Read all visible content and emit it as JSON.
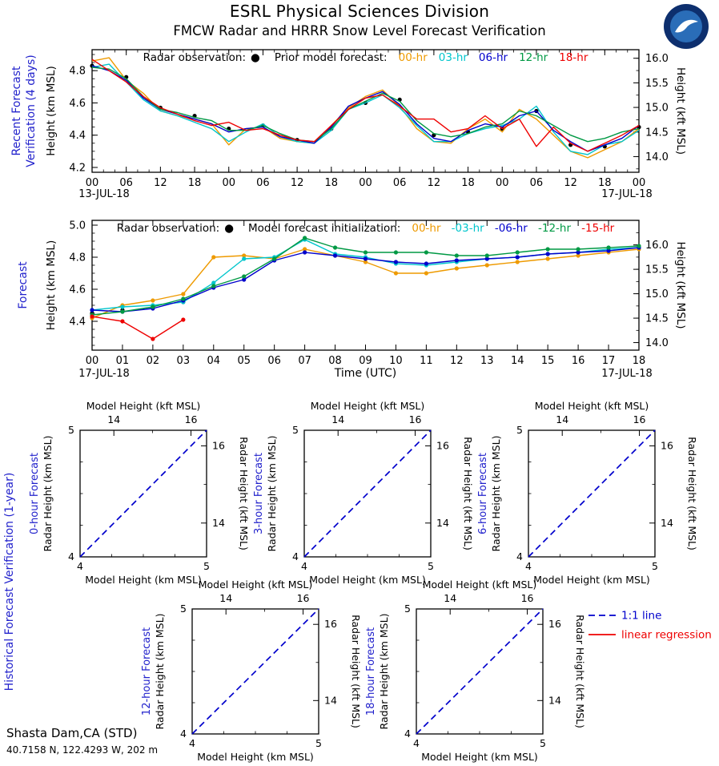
{
  "page": {
    "title": "ESRL Physical Sciences Division",
    "subtitle": "FMCW Radar and HRRR Snow Level Forecast Verification"
  },
  "logo": {
    "name": "noaa-logo",
    "colors": {
      "outer": "#0d2f6e",
      "inner": "#2a6db8",
      "bird": "#ffffff"
    }
  },
  "station": {
    "name": "Shasta Dam,CA (STD)",
    "coordinates": "40.7158 N, 122.4293 W, 202 m"
  },
  "colors": {
    "axis": "#000000",
    "side_label_blue": "#2222cc",
    "series": {
      "radar": "#000000",
      "hr00": "#ee9a00",
      "hr03": "#00c5cc",
      "hr06": "#0000cc",
      "hr12": "#009944",
      "hr18": "#ee0000"
    }
  },
  "chart_data": [
    {
      "id": "recent-verification",
      "type": "line",
      "side_label_lines": [
        "Recent Forecast",
        "Verification (4 days)"
      ],
      "ylabel_left": "Height (km MSL)",
      "ylabel_right": "Height (kft MSL)",
      "legend": {
        "radar_label": "Radar observation:",
        "group_label": "Prior model forecast:",
        "items": [
          {
            "label": "00-hr",
            "color_key": "hr00"
          },
          {
            "label": "03-hr",
            "color_key": "hr03"
          },
          {
            "label": "06-hr",
            "color_key": "hr06"
          },
          {
            "label": "12-hr",
            "color_key": "hr12"
          },
          {
            "label": "18-hr",
            "color_key": "hr18"
          }
        ]
      },
      "xlim": [
        0,
        96
      ],
      "x_tick_step": 6,
      "x_minor_step": 2,
      "x_tick_labels": [
        "00",
        "06",
        "12",
        "18",
        "00",
        "06",
        "12",
        "18",
        "00",
        "06",
        "12",
        "18",
        "00",
        "06",
        "12",
        "18",
        "00"
      ],
      "date_left": "13-JUL-18",
      "date_right": "17-JUL-18",
      "ylim": [
        4.17,
        4.93
      ],
      "yticks_left": [
        4.2,
        4.4,
        4.6,
        4.8
      ],
      "yticks_right_kft": [
        14.0,
        14.5,
        15.0,
        15.5,
        16.0
      ],
      "series": [
        {
          "name": "radar",
          "color_key": "radar",
          "line": false,
          "markers": true,
          "x": [
            0,
            6,
            12,
            18,
            24,
            30,
            36,
            42,
            48,
            54,
            60,
            66,
            72,
            78,
            84,
            90,
            96
          ],
          "y": [
            4.83,
            4.76,
            4.57,
            4.52,
            4.44,
            4.46,
            4.37,
            4.44,
            4.6,
            4.62,
            4.4,
            4.42,
            4.44,
            4.55,
            4.34,
            4.33,
            4.45
          ]
        },
        {
          "name": "00-hr",
          "color_key": "hr00",
          "markers": false,
          "x": [
            0,
            3,
            6,
            9,
            12,
            15,
            18,
            21,
            24,
            27,
            30,
            33,
            36,
            39,
            42,
            45,
            48,
            51,
            54,
            57,
            60,
            63,
            66,
            69,
            72,
            75,
            78,
            81,
            84,
            87,
            90,
            93,
            96
          ],
          "y": [
            4.86,
            4.88,
            4.74,
            4.66,
            4.55,
            4.52,
            4.5,
            4.47,
            4.34,
            4.44,
            4.45,
            4.38,
            4.36,
            4.35,
            4.46,
            4.57,
            4.64,
            4.68,
            4.58,
            4.44,
            4.36,
            4.35,
            4.44,
            4.5,
            4.42,
            4.56,
            4.5,
            4.4,
            4.3,
            4.26,
            4.31,
            4.36,
            4.44
          ]
        },
        {
          "name": "03-hr",
          "color_key": "hr03",
          "markers": false,
          "x": [
            0,
            3,
            6,
            9,
            12,
            15,
            18,
            21,
            24,
            27,
            30,
            33,
            36,
            39,
            42,
            45,
            48,
            51,
            54,
            57,
            60,
            63,
            66,
            69,
            72,
            75,
            78,
            81,
            84,
            87,
            90,
            93,
            96
          ],
          "y": [
            4.82,
            4.84,
            4.73,
            4.62,
            4.55,
            4.52,
            4.48,
            4.44,
            4.36,
            4.42,
            4.47,
            4.39,
            4.36,
            4.35,
            4.43,
            4.56,
            4.6,
            4.65,
            4.57,
            4.46,
            4.36,
            4.36,
            4.41,
            4.44,
            4.46,
            4.5,
            4.58,
            4.42,
            4.3,
            4.28,
            4.34,
            4.36,
            4.43
          ]
        },
        {
          "name": "06-hr",
          "color_key": "hr06",
          "markers": false,
          "x": [
            0,
            3,
            6,
            9,
            12,
            15,
            18,
            21,
            24,
            27,
            30,
            33,
            36,
            39,
            42,
            45,
            48,
            51,
            54,
            57,
            60,
            63,
            66,
            69,
            72,
            75,
            78,
            81,
            84,
            87,
            90,
            93,
            96
          ],
          "y": [
            4.83,
            4.8,
            4.74,
            4.63,
            4.56,
            4.53,
            4.5,
            4.47,
            4.42,
            4.44,
            4.45,
            4.39,
            4.37,
            4.35,
            4.45,
            4.58,
            4.63,
            4.67,
            4.59,
            4.47,
            4.38,
            4.36,
            4.43,
            4.47,
            4.45,
            4.52,
            4.55,
            4.43,
            4.36,
            4.3,
            4.34,
            4.38,
            4.46
          ]
        },
        {
          "name": "12-hr",
          "color_key": "hr12",
          "markers": false,
          "x": [
            0,
            3,
            6,
            9,
            12,
            15,
            18,
            21,
            24,
            27,
            30,
            33,
            36,
            39,
            42,
            45,
            48,
            51,
            54,
            57,
            60,
            63,
            66,
            69,
            72,
            75,
            78,
            81,
            84,
            87,
            90,
            93,
            96
          ],
          "y": [
            4.82,
            4.81,
            4.75,
            4.64,
            4.56,
            4.54,
            4.51,
            4.49,
            4.43,
            4.43,
            4.46,
            4.41,
            4.37,
            4.36,
            4.44,
            4.56,
            4.61,
            4.66,
            4.61,
            4.49,
            4.41,
            4.39,
            4.41,
            4.45,
            4.47,
            4.55,
            4.52,
            4.46,
            4.4,
            4.36,
            4.38,
            4.42,
            4.44
          ]
        },
        {
          "name": "18-hr",
          "color_key": "hr18",
          "markers": false,
          "x": [
            0,
            3,
            6,
            9,
            12,
            15,
            18,
            21,
            24,
            27,
            30,
            33,
            36,
            39,
            42,
            45,
            48,
            51,
            54,
            57,
            60,
            63,
            66,
            69,
            72,
            75,
            78,
            81,
            84,
            87,
            90,
            93,
            96
          ],
          "y": [
            4.87,
            4.8,
            4.73,
            4.64,
            4.57,
            4.53,
            4.49,
            4.46,
            4.48,
            4.43,
            4.44,
            4.4,
            4.37,
            4.36,
            4.46,
            4.56,
            4.63,
            4.65,
            4.58,
            4.5,
            4.5,
            4.42,
            4.44,
            4.52,
            4.44,
            4.5,
            4.33,
            4.45,
            4.35,
            4.3,
            4.35,
            4.4,
            4.46
          ]
        }
      ]
    },
    {
      "id": "forecast",
      "type": "line",
      "side_label_lines": [
        "Forecast"
      ],
      "ylabel_left": "Height (km MSL)",
      "ylabel_right": "Height (kft MSL)",
      "xlabel": "Time (UTC)",
      "legend": {
        "radar_label": "Radar observation:",
        "group_label": "Model forecast initialization:",
        "items": [
          {
            "label": "00-hr",
            "color_key": "hr00"
          },
          {
            "label": "-03-hr",
            "color_key": "hr03"
          },
          {
            "label": "-06-hr",
            "color_key": "hr06"
          },
          {
            "label": "-12-hr",
            "color_key": "hr12"
          },
          {
            "label": "-15-hr",
            "color_key": "hr18"
          }
        ]
      },
      "xlim": [
        0,
        18
      ],
      "x_tick_step": 1,
      "x_minor_step": null,
      "x_tick_labels": [
        "00",
        "01",
        "02",
        "03",
        "04",
        "05",
        "06",
        "07",
        "08",
        "09",
        "10",
        "11",
        "12",
        "13",
        "14",
        "15",
        "16",
        "17",
        "18"
      ],
      "date_left": "17-JUL-18",
      "date_right": "17-JUL-18",
      "ylim": [
        4.22,
        5.03
      ],
      "yticks_left": [
        4.4,
        4.6,
        4.8,
        5.0
      ],
      "yticks_right_kft": [
        14.0,
        14.5,
        15.0,
        15.5,
        16.0
      ],
      "series": [
        {
          "name": "radar",
          "color_key": "radar",
          "line": false,
          "markers": true,
          "x": [
            0,
            1,
            2,
            3
          ],
          "y": [
            4.45,
            4.47,
            4.49,
            4.52
          ]
        },
        {
          "name": "00-hr",
          "color_key": "hr00",
          "markers": true,
          "x": [
            0,
            1,
            2,
            3,
            4,
            5,
            6,
            7,
            8,
            9,
            10,
            11,
            12,
            13,
            14,
            15,
            16,
            17,
            18
          ],
          "y": [
            4.42,
            4.5,
            4.53,
            4.57,
            4.8,
            4.81,
            4.79,
            4.85,
            4.81,
            4.77,
            4.7,
            4.7,
            4.73,
            4.75,
            4.77,
            4.79,
            4.81,
            4.83,
            4.85
          ]
        },
        {
          "name": "-03-hr",
          "color_key": "hr03",
          "markers": true,
          "x": [
            0,
            1,
            2,
            3,
            4,
            5,
            6,
            7,
            8,
            9,
            10,
            11,
            12,
            13,
            14,
            15,
            16,
            17,
            18
          ],
          "y": [
            4.47,
            4.49,
            4.5,
            4.52,
            4.64,
            4.79,
            4.8,
            4.91,
            4.82,
            4.8,
            4.76,
            4.75,
            4.77,
            4.79,
            4.8,
            4.82,
            4.83,
            4.85,
            4.86
          ]
        },
        {
          "name": "-06-hr",
          "color_key": "hr06",
          "markers": true,
          "x": [
            0,
            1,
            2,
            3,
            4,
            5,
            6,
            7,
            8,
            9,
            10,
            11,
            12,
            13,
            14,
            15,
            16,
            17,
            18
          ],
          "y": [
            4.47,
            4.46,
            4.48,
            4.53,
            4.61,
            4.66,
            4.78,
            4.83,
            4.81,
            4.79,
            4.77,
            4.76,
            4.78,
            4.79,
            4.8,
            4.82,
            4.83,
            4.84,
            4.86
          ]
        },
        {
          "name": "-12-hr",
          "color_key": "hr12",
          "markers": true,
          "x": [
            0,
            1,
            2,
            3,
            4,
            5,
            6,
            7,
            8,
            9,
            10,
            11,
            12,
            13,
            14,
            15,
            16,
            17,
            18
          ],
          "y": [
            4.44,
            4.46,
            4.49,
            4.54,
            4.62,
            4.68,
            4.79,
            4.92,
            4.86,
            4.83,
            4.83,
            4.83,
            4.81,
            4.81,
            4.83,
            4.85,
            4.85,
            4.86,
            4.87
          ]
        },
        {
          "name": "-15-hr",
          "color_key": "hr18",
          "markers": true,
          "x": [
            0,
            1,
            2,
            3
          ],
          "y": [
            4.43,
            4.4,
            4.29,
            4.41
          ]
        }
      ]
    },
    {
      "id": "historical-verification",
      "type": "scatter-grid",
      "side_label": "Historical Forecast Verification (1-year)",
      "panels": [
        {
          "label": "0-hour Forecast"
        },
        {
          "label": "3-hour Forecast"
        },
        {
          "label": "6-hour Forecast"
        },
        {
          "label": "12-hour Forecast"
        },
        {
          "label": "18-hour Forecast"
        }
      ],
      "xlabel": "Model Height (km MSL)",
      "xlabel_top": "Model Height (kft MSL)",
      "ylabel_left": "Radar Height (km MSL)",
      "ylabel_right": "Radar Height (kft MSL)",
      "xlim": [
        4,
        5
      ],
      "ylim": [
        4,
        5
      ],
      "xticks": [
        4,
        5
      ],
      "yticks": [
        4,
        5
      ],
      "kft_ticks": [
        14,
        16
      ],
      "points": [],
      "identity_line": {
        "label": "1:1 line",
        "color_key": "hr06"
      },
      "regression": {
        "label": "linear regression",
        "color_key": "hr18"
      }
    }
  ]
}
